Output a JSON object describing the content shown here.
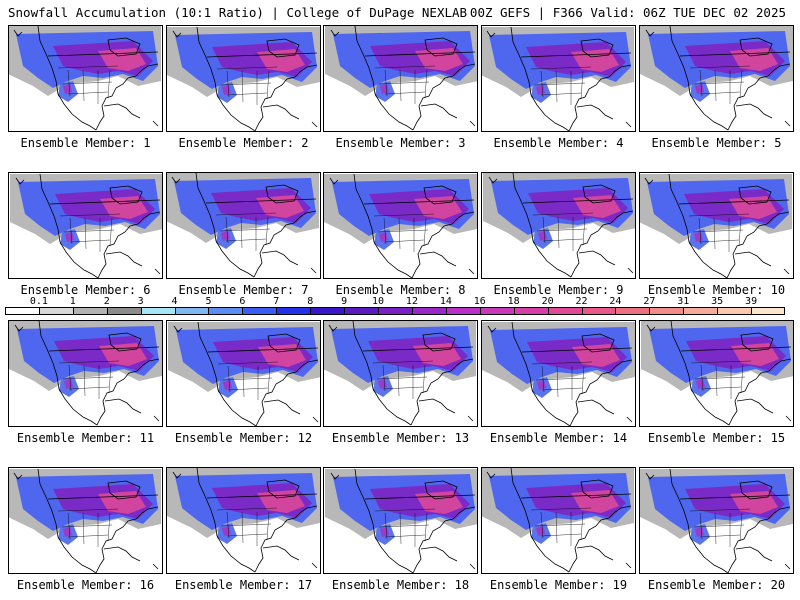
{
  "header": {
    "title_left": "Snowfall Accumulation (10:1 Ratio) | College of DuPage NEXLAB",
    "title_right": "00Z GEFS | F366 Valid: 06Z TUE DEC 02 2025"
  },
  "members": [
    {
      "label": "Ensemble Member: 1"
    },
    {
      "label": "Ensemble Member: 2"
    },
    {
      "label": "Ensemble Member: 3"
    },
    {
      "label": "Ensemble Member: 4"
    },
    {
      "label": "Ensemble Member: 5"
    },
    {
      "label": "Ensemble Member: 6"
    },
    {
      "label": "Ensemble Member: 7"
    },
    {
      "label": "Ensemble Member: 8"
    },
    {
      "label": "Ensemble Member: 9"
    },
    {
      "label": "Ensemble Member: 10"
    },
    {
      "label": "Ensemble Member: 11"
    },
    {
      "label": "Ensemble Member: 12"
    },
    {
      "label": "Ensemble Member: 13"
    },
    {
      "label": "Ensemble Member: 14"
    },
    {
      "label": "Ensemble Member: 15"
    },
    {
      "label": "Ensemble Member: 16"
    },
    {
      "label": "Ensemble Member: 17"
    },
    {
      "label": "Ensemble Member: 18"
    },
    {
      "label": "Ensemble Member: 19"
    },
    {
      "label": "Ensemble Member: 20"
    }
  ],
  "colorbar": {
    "ticks": [
      "0.1",
      "1",
      "2",
      "3",
      "4",
      "5",
      "6",
      "7",
      "8",
      "9",
      "10",
      "12",
      "14",
      "16",
      "18",
      "20",
      "22",
      "24",
      "27",
      "31",
      "35",
      "39"
    ],
    "colors": [
      "#ffffff",
      "#d9d9d9",
      "#b3b3b3",
      "#8c8c8c",
      "#a6e6f2",
      "#7fb7f0",
      "#5a8ef0",
      "#3a5ef0",
      "#2332e6",
      "#3a18c8",
      "#5a1cc0",
      "#7a20c4",
      "#9a28c8",
      "#b830c8",
      "#c838b8",
      "#d440a8",
      "#e04898",
      "#e85888",
      "#ec7080",
      "#f08c8c",
      "#f4aa9c",
      "#f8c8b0",
      "#fce6d0"
    ]
  },
  "colors": {
    "snow_light": "#b8b8b8",
    "snow_blue": "#4f66ee",
    "snow_purple": "#7a2bc7",
    "snow_magenta": "#d2459e",
    "coast_line": "#000000"
  }
}
